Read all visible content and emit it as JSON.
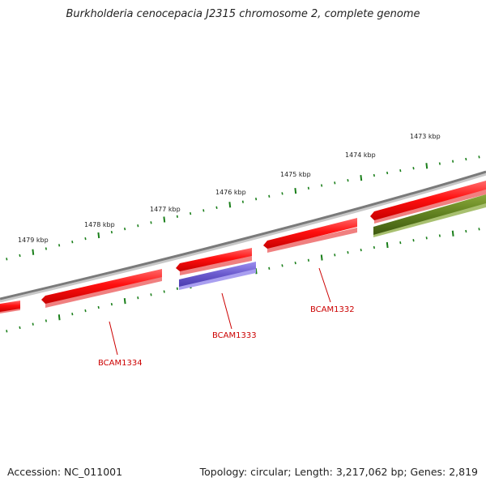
{
  "title": "Burkholderia cenocepacia J2315 chromosome 2, complete genome",
  "footer": {
    "accession": "Accession: NC_011001",
    "summary": "Topology: circular; Length: 3,217,062 bp; Genes: 2,819"
  },
  "colors": {
    "backbone": "#888888",
    "tick": "#1a7f1a",
    "tick_label": "#222222",
    "gene_red": "#ff1010",
    "gene_blue": "#6a5acd",
    "gene_green": "#5f7f1f",
    "gene_label": "#cc0000"
  },
  "scale_labels": [
    "1473 kbp",
    "1474 kbp",
    "1475 kbp",
    "1476 kbp",
    "1477 kbp",
    "1478 kbp",
    "1479 kbp"
  ],
  "genes": [
    {
      "label": "BCAM1332"
    },
    {
      "label": "BCAM1333"
    },
    {
      "label": "BCAM1334"
    }
  ]
}
